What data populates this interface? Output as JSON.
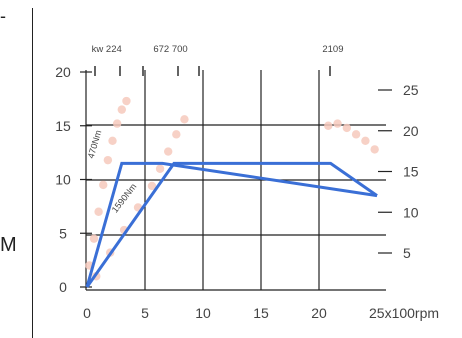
{
  "stray_text": {
    "top": "-",
    "mid": "M"
  },
  "chart_data": {
    "type": "line",
    "title": "",
    "xlabel": "",
    "ylabel": "",
    "x_unit": "x100rpm",
    "xlim": [
      0,
      25
    ],
    "ylim_left": [
      0,
      20
    ],
    "ylim_right": [
      2.5,
      27.5
    ],
    "x_ticks": [
      "0",
      "5",
      "10",
      "15",
      "20",
      "25"
    ],
    "y_ticks_left": [
      "0",
      "5",
      "10",
      "15",
      "20"
    ],
    "y_ticks_right": [
      "5",
      "10",
      "15",
      "20",
      "25"
    ],
    "top_labels": [
      {
        "text": "kw 224",
        "x": 1.7
      },
      {
        "text": "672 700",
        "x": 7.2
      },
      {
        "text": "2109",
        "x": 21.2
      }
    ],
    "grid": true,
    "colors": {
      "line": "#3a6fd6",
      "scatter": "#f6c9bc",
      "grid": "#222222"
    },
    "series": [
      {
        "x": [
          0,
          3,
          6.5,
          25
        ],
        "y": [
          0,
          11.5,
          11.5,
          8.5
        ]
      },
      {
        "x": [
          0,
          7.5,
          21,
          25
        ],
        "y": [
          0,
          11.5,
          11.5,
          8.5
        ]
      }
    ],
    "annotations": [
      {
        "text": "470Nm",
        "x": 0.9,
        "y": 13.2,
        "angle": -74
      },
      {
        "text": "1590Nm",
        "x": 3.4,
        "y": 8.1,
        "angle": -52
      }
    ],
    "scatter_bands": [
      {
        "x": [
          0.2,
          0.6,
          1.0,
          1.4,
          1.8,
          2.2,
          2.6,
          3.0,
          3.4
        ],
        "y": [
          2.0,
          4.5,
          7.0,
          9.5,
          11.8,
          13.6,
          15.2,
          16.5,
          17.3
        ]
      },
      {
        "x": [
          0.8,
          2.0,
          3.2,
          4.4,
          5.6,
          6.3,
          7.0,
          7.7,
          8.4
        ],
        "y": [
          1.0,
          3.2,
          5.3,
          7.4,
          9.4,
          11.0,
          12.6,
          14.2,
          15.6
        ]
      },
      {
        "x": [
          20.8,
          21.6,
          22.4,
          23.2,
          24.0,
          24.8
        ],
        "y": [
          15.0,
          15.2,
          14.8,
          14.2,
          13.6,
          12.8
        ]
      }
    ]
  }
}
